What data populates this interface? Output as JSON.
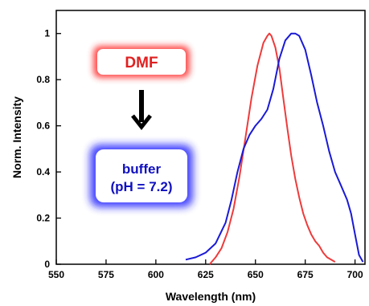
{
  "chart_data": {
    "type": "line",
    "xlabel": "Wavelength (nm)",
    "ylabel": "Norm. Intensity",
    "xlim": [
      550,
      705
    ],
    "ylim": [
      0,
      1.1
    ],
    "x_ticks": [
      550,
      575,
      600,
      625,
      650,
      675,
      700
    ],
    "y_ticks": [
      0,
      0.2,
      0.4,
      0.6,
      0.8,
      1
    ],
    "y_tick_labels": [
      "0",
      "0.2",
      "0.4",
      "0.6",
      "0.8",
      "1"
    ],
    "grid": false,
    "series": [
      {
        "name": "DMF",
        "color": "#ee3b3b",
        "x": [
          627,
          630,
          633,
          636,
          639,
          642,
          645,
          648,
          651,
          654,
          656,
          657,
          658,
          660,
          662,
          664,
          666,
          668,
          670,
          672,
          674,
          676,
          678,
          680,
          682,
          684,
          686,
          688,
          690
        ],
        "y": [
          0.0,
          0.03,
          0.07,
          0.14,
          0.24,
          0.38,
          0.55,
          0.72,
          0.86,
          0.96,
          0.99,
          1.0,
          0.99,
          0.94,
          0.85,
          0.72,
          0.59,
          0.47,
          0.37,
          0.29,
          0.22,
          0.17,
          0.13,
          0.1,
          0.08,
          0.05,
          0.03,
          0.02,
          0.01
        ]
      },
      {
        "name": "buffer (pH = 7.2)",
        "color": "#1a1ad6",
        "x": [
          615,
          620,
          625,
          630,
          635,
          638,
          641,
          644,
          647,
          650,
          653,
          656,
          659,
          662,
          665,
          668,
          670,
          672,
          675,
          678,
          681,
          684,
          687,
          690,
          693,
          696,
          698,
          700,
          702,
          704
        ],
        "y": [
          0.02,
          0.03,
          0.05,
          0.09,
          0.18,
          0.28,
          0.4,
          0.5,
          0.56,
          0.6,
          0.63,
          0.67,
          0.76,
          0.89,
          0.97,
          1.0,
          1.0,
          0.99,
          0.93,
          0.82,
          0.7,
          0.6,
          0.49,
          0.4,
          0.34,
          0.28,
          0.22,
          0.13,
          0.04,
          0.01
        ]
      }
    ],
    "annotations": {
      "dmf_box": {
        "text": "DMF",
        "color": "#e02020"
      },
      "buffer_box": {
        "line1": "buffer",
        "line2": "(pH = 7.2)",
        "color": "#1010c0"
      },
      "arrow": "down"
    }
  }
}
